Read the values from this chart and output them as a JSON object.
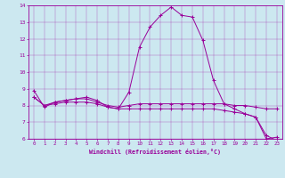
{
  "xlabel": "Windchill (Refroidissement éolien,°C)",
  "background_color": "#cce8f0",
  "line_color": "#990099",
  "grid_color": "#aabbcc",
  "xlim": [
    -0.5,
    23.5
  ],
  "ylim": [
    6,
    14
  ],
  "yticks": [
    6,
    7,
    8,
    9,
    10,
    11,
    12,
    13,
    14
  ],
  "xticks": [
    0,
    1,
    2,
    3,
    4,
    5,
    6,
    7,
    8,
    9,
    10,
    11,
    12,
    13,
    14,
    15,
    16,
    17,
    18,
    19,
    20,
    21,
    22,
    23
  ],
  "series": [
    {
      "x": [
        0,
        1,
        2,
        3,
        4,
        5,
        6,
        7,
        8,
        9,
        10,
        11,
        12,
        13,
        14,
        15,
        16,
        17,
        18,
        19,
        20,
        21,
        22,
        23
      ],
      "y": [
        8.9,
        7.9,
        8.2,
        8.3,
        8.4,
        8.5,
        8.3,
        7.9,
        7.8,
        8.8,
        11.5,
        12.7,
        13.4,
        13.9,
        13.4,
        13.3,
        11.9,
        9.5,
        8.1,
        7.8,
        7.5,
        7.3,
        6.0,
        6.1
      ]
    },
    {
      "x": [
        0,
        1,
        2,
        3,
        4,
        5,
        6,
        7,
        8,
        9,
        10,
        11,
        12,
        13,
        14,
        15,
        16,
        17,
        18,
        19,
        20,
        21,
        22,
        23
      ],
      "y": [
        8.5,
        8.0,
        8.2,
        8.3,
        8.4,
        8.4,
        8.2,
        8.0,
        7.9,
        8.0,
        8.1,
        8.1,
        8.1,
        8.1,
        8.1,
        8.1,
        8.1,
        8.1,
        8.1,
        8.0,
        8.0,
        7.9,
        7.8,
        7.8
      ]
    },
    {
      "x": [
        0,
        1,
        2,
        3,
        4,
        5,
        6,
        7,
        8,
        9,
        10,
        11,
        12,
        13,
        14,
        15,
        16,
        17,
        18,
        19,
        20,
        21,
        22,
        23
      ],
      "y": [
        8.5,
        8.0,
        8.1,
        8.2,
        8.2,
        8.2,
        8.1,
        7.9,
        7.8,
        7.8,
        7.8,
        7.8,
        7.8,
        7.8,
        7.8,
        7.8,
        7.8,
        7.8,
        7.7,
        7.6,
        7.5,
        7.3,
        6.2,
        5.9
      ]
    }
  ]
}
